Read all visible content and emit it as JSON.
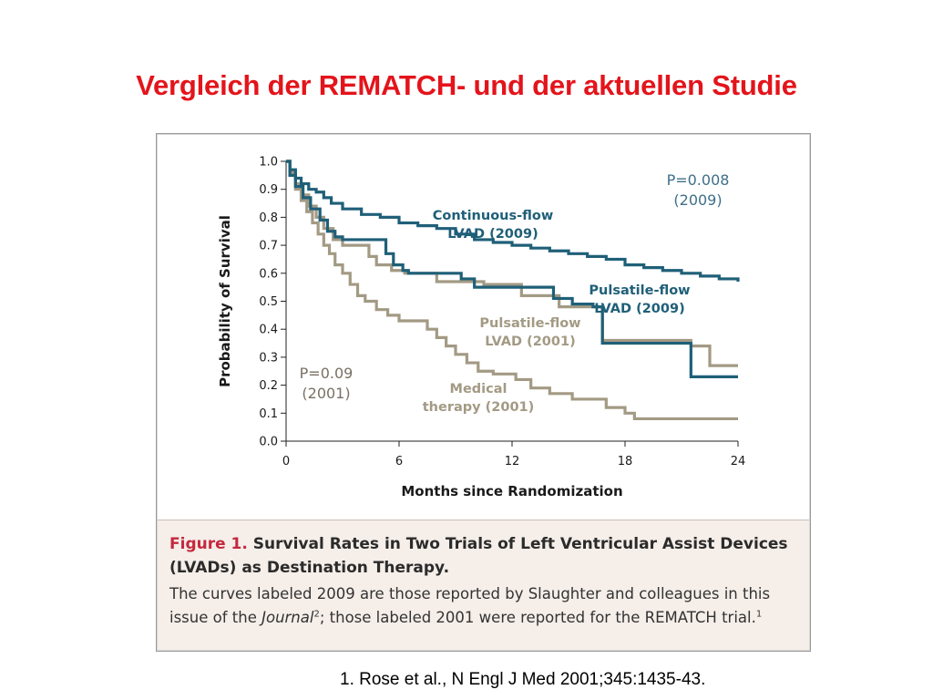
{
  "slide": {
    "title": "Vergleich der REMATCH- und der aktuellen Studie",
    "reference": "1. Rose et al., N Engl J Med 2001;345:1435-43."
  },
  "caption": {
    "figure_label": "Figure 1.",
    "heading": "Survival Rates in Two Trials of Left Ventricular Assist Devices (LVADs) as Destination Therapy.",
    "body_part1": "The curves labeled 2009 are those reported by Slaughter and colleagues in this issue of the ",
    "journal": "Journal",
    "ref_sup_1": "2",
    "body_part2": "; those labeled 2001 were reported for the REMATCH trial.",
    "ref_sup_2": "1"
  },
  "colors": {
    "title_red": "#e4141b",
    "series_2009": "#1f5f78",
    "series_2001": "#a39a84",
    "p2009_text": "#3f6f88",
    "p2001_text": "#7a7062",
    "figure_label_red": "#c5283d"
  },
  "chart_data": {
    "type": "line",
    "step": true,
    "xlabel": "Months since Randomization",
    "ylabel": "Probability of Survival",
    "xlim": [
      0,
      24
    ],
    "ylim": [
      0,
      1.0
    ],
    "x_ticks": [
      0,
      6,
      12,
      18,
      24
    ],
    "x_tick_labels": [
      "0",
      "6",
      "12",
      "18",
      "24"
    ],
    "y_ticks": [
      0,
      0.1,
      0.2,
      0.3,
      0.4,
      0.5,
      0.6,
      0.7,
      0.8,
      0.9,
      1.0
    ],
    "y_tick_labels": [
      "0.0",
      "0.1",
      "0.2",
      "0.3",
      "0.4",
      "0.5",
      "0.6",
      "0.7",
      "0.8",
      "0.9",
      "1.0"
    ],
    "series": [
      {
        "key": "medical-2001",
        "label_lines": [
          "Medical",
          "therapy (2001)"
        ],
        "color_key": "series_2001",
        "points": [
          [
            0,
            1.0
          ],
          [
            0.2,
            0.95
          ],
          [
            0.5,
            0.9
          ],
          [
            0.8,
            0.86
          ],
          [
            1.1,
            0.82
          ],
          [
            1.4,
            0.78
          ],
          [
            1.7,
            0.74
          ],
          [
            2.0,
            0.7
          ],
          [
            2.3,
            0.67
          ],
          [
            2.6,
            0.63
          ],
          [
            3.0,
            0.6
          ],
          [
            3.4,
            0.56
          ],
          [
            3.8,
            0.52
          ],
          [
            4.2,
            0.5
          ],
          [
            4.8,
            0.47
          ],
          [
            5.4,
            0.45
          ],
          [
            6.0,
            0.43
          ],
          [
            7.0,
            0.43
          ],
          [
            7.5,
            0.4
          ],
          [
            8.0,
            0.37
          ],
          [
            8.5,
            0.34
          ],
          [
            9.0,
            0.31
          ],
          [
            9.6,
            0.28
          ],
          [
            10.2,
            0.25
          ],
          [
            11.0,
            0.24
          ],
          [
            12.2,
            0.22
          ],
          [
            13.0,
            0.19
          ],
          [
            14.0,
            0.17
          ],
          [
            15.2,
            0.15
          ],
          [
            17.0,
            0.12
          ],
          [
            18.0,
            0.1
          ],
          [
            18.5,
            0.08
          ],
          [
            24.0,
            0.08
          ]
        ]
      },
      {
        "key": "pulsatile-2001",
        "label_lines": [
          "Pulsatile-flow",
          "LVAD (2001)"
        ],
        "color_key": "series_2001",
        "points": [
          [
            0,
            1.0
          ],
          [
            0.2,
            0.96
          ],
          [
            0.5,
            0.92
          ],
          [
            0.8,
            0.88
          ],
          [
            1.2,
            0.84
          ],
          [
            1.6,
            0.8
          ],
          [
            2.0,
            0.76
          ],
          [
            2.5,
            0.72
          ],
          [
            3.0,
            0.7
          ],
          [
            4.0,
            0.7
          ],
          [
            4.4,
            0.66
          ],
          [
            4.8,
            0.63
          ],
          [
            5.6,
            0.61
          ],
          [
            6.3,
            0.6
          ],
          [
            8.0,
            0.57
          ],
          [
            10.5,
            0.56
          ],
          [
            12.5,
            0.52
          ],
          [
            13.8,
            0.52
          ],
          [
            14.5,
            0.48
          ],
          [
            16.8,
            0.36
          ],
          [
            21.5,
            0.34
          ],
          [
            22.5,
            0.27
          ],
          [
            24.0,
            0.27
          ]
        ]
      },
      {
        "key": "pulsatile-2009",
        "label_lines": [
          "Pulsatile-flow",
          "LVAD (2009)"
        ],
        "color_key": "series_2009",
        "points": [
          [
            0,
            1.0
          ],
          [
            0.2,
            0.95
          ],
          [
            0.5,
            0.91
          ],
          [
            0.9,
            0.87
          ],
          [
            1.3,
            0.83
          ],
          [
            1.8,
            0.79
          ],
          [
            2.2,
            0.75
          ],
          [
            2.6,
            0.73
          ],
          [
            3.0,
            0.72
          ],
          [
            5.0,
            0.72
          ],
          [
            5.3,
            0.67
          ],
          [
            5.7,
            0.63
          ],
          [
            6.2,
            0.61
          ],
          [
            6.5,
            0.6
          ],
          [
            9.0,
            0.6
          ],
          [
            9.3,
            0.58
          ],
          [
            10.0,
            0.55
          ],
          [
            13.8,
            0.55
          ],
          [
            14.2,
            0.51
          ],
          [
            15.2,
            0.49
          ],
          [
            16.3,
            0.48
          ],
          [
            16.8,
            0.35
          ],
          [
            21.2,
            0.35
          ],
          [
            21.5,
            0.23
          ],
          [
            24.0,
            0.23
          ]
        ]
      },
      {
        "key": "continuous-2009",
        "label_lines": [
          "Continuous-flow",
          "LVAD (2009)"
        ],
        "color_key": "series_2009",
        "points": [
          [
            0,
            1.0
          ],
          [
            0.2,
            0.97
          ],
          [
            0.5,
            0.94
          ],
          [
            0.8,
            0.92
          ],
          [
            1.2,
            0.9
          ],
          [
            1.6,
            0.89
          ],
          [
            2.0,
            0.87
          ],
          [
            2.4,
            0.85
          ],
          [
            3.0,
            0.83
          ],
          [
            4.0,
            0.81
          ],
          [
            5.0,
            0.8
          ],
          [
            6.0,
            0.78
          ],
          [
            7.0,
            0.77
          ],
          [
            8.0,
            0.76
          ],
          [
            9.0,
            0.74
          ],
          [
            10.0,
            0.72
          ],
          [
            11.0,
            0.71
          ],
          [
            12.0,
            0.7
          ],
          [
            13.0,
            0.69
          ],
          [
            14.0,
            0.68
          ],
          [
            15.0,
            0.67
          ],
          [
            16.0,
            0.66
          ],
          [
            17.0,
            0.65
          ],
          [
            18.0,
            0.63
          ],
          [
            19.0,
            0.62
          ],
          [
            20.0,
            0.61
          ],
          [
            21.0,
            0.6
          ],
          [
            22.0,
            0.59
          ],
          [
            23.0,
            0.58
          ],
          [
            24.0,
            0.57
          ]
        ]
      }
    ],
    "annotations": [
      {
        "key": "p2009",
        "lines": [
          "P=0.008",
          "(2009)"
        ],
        "color_key": "p2009_text"
      },
      {
        "key": "p2001",
        "lines": [
          "P=0.09",
          "(2001)"
        ],
        "color_key": "p2001_text"
      }
    ],
    "grid": false,
    "legend": "none (curves labeled inline)"
  }
}
